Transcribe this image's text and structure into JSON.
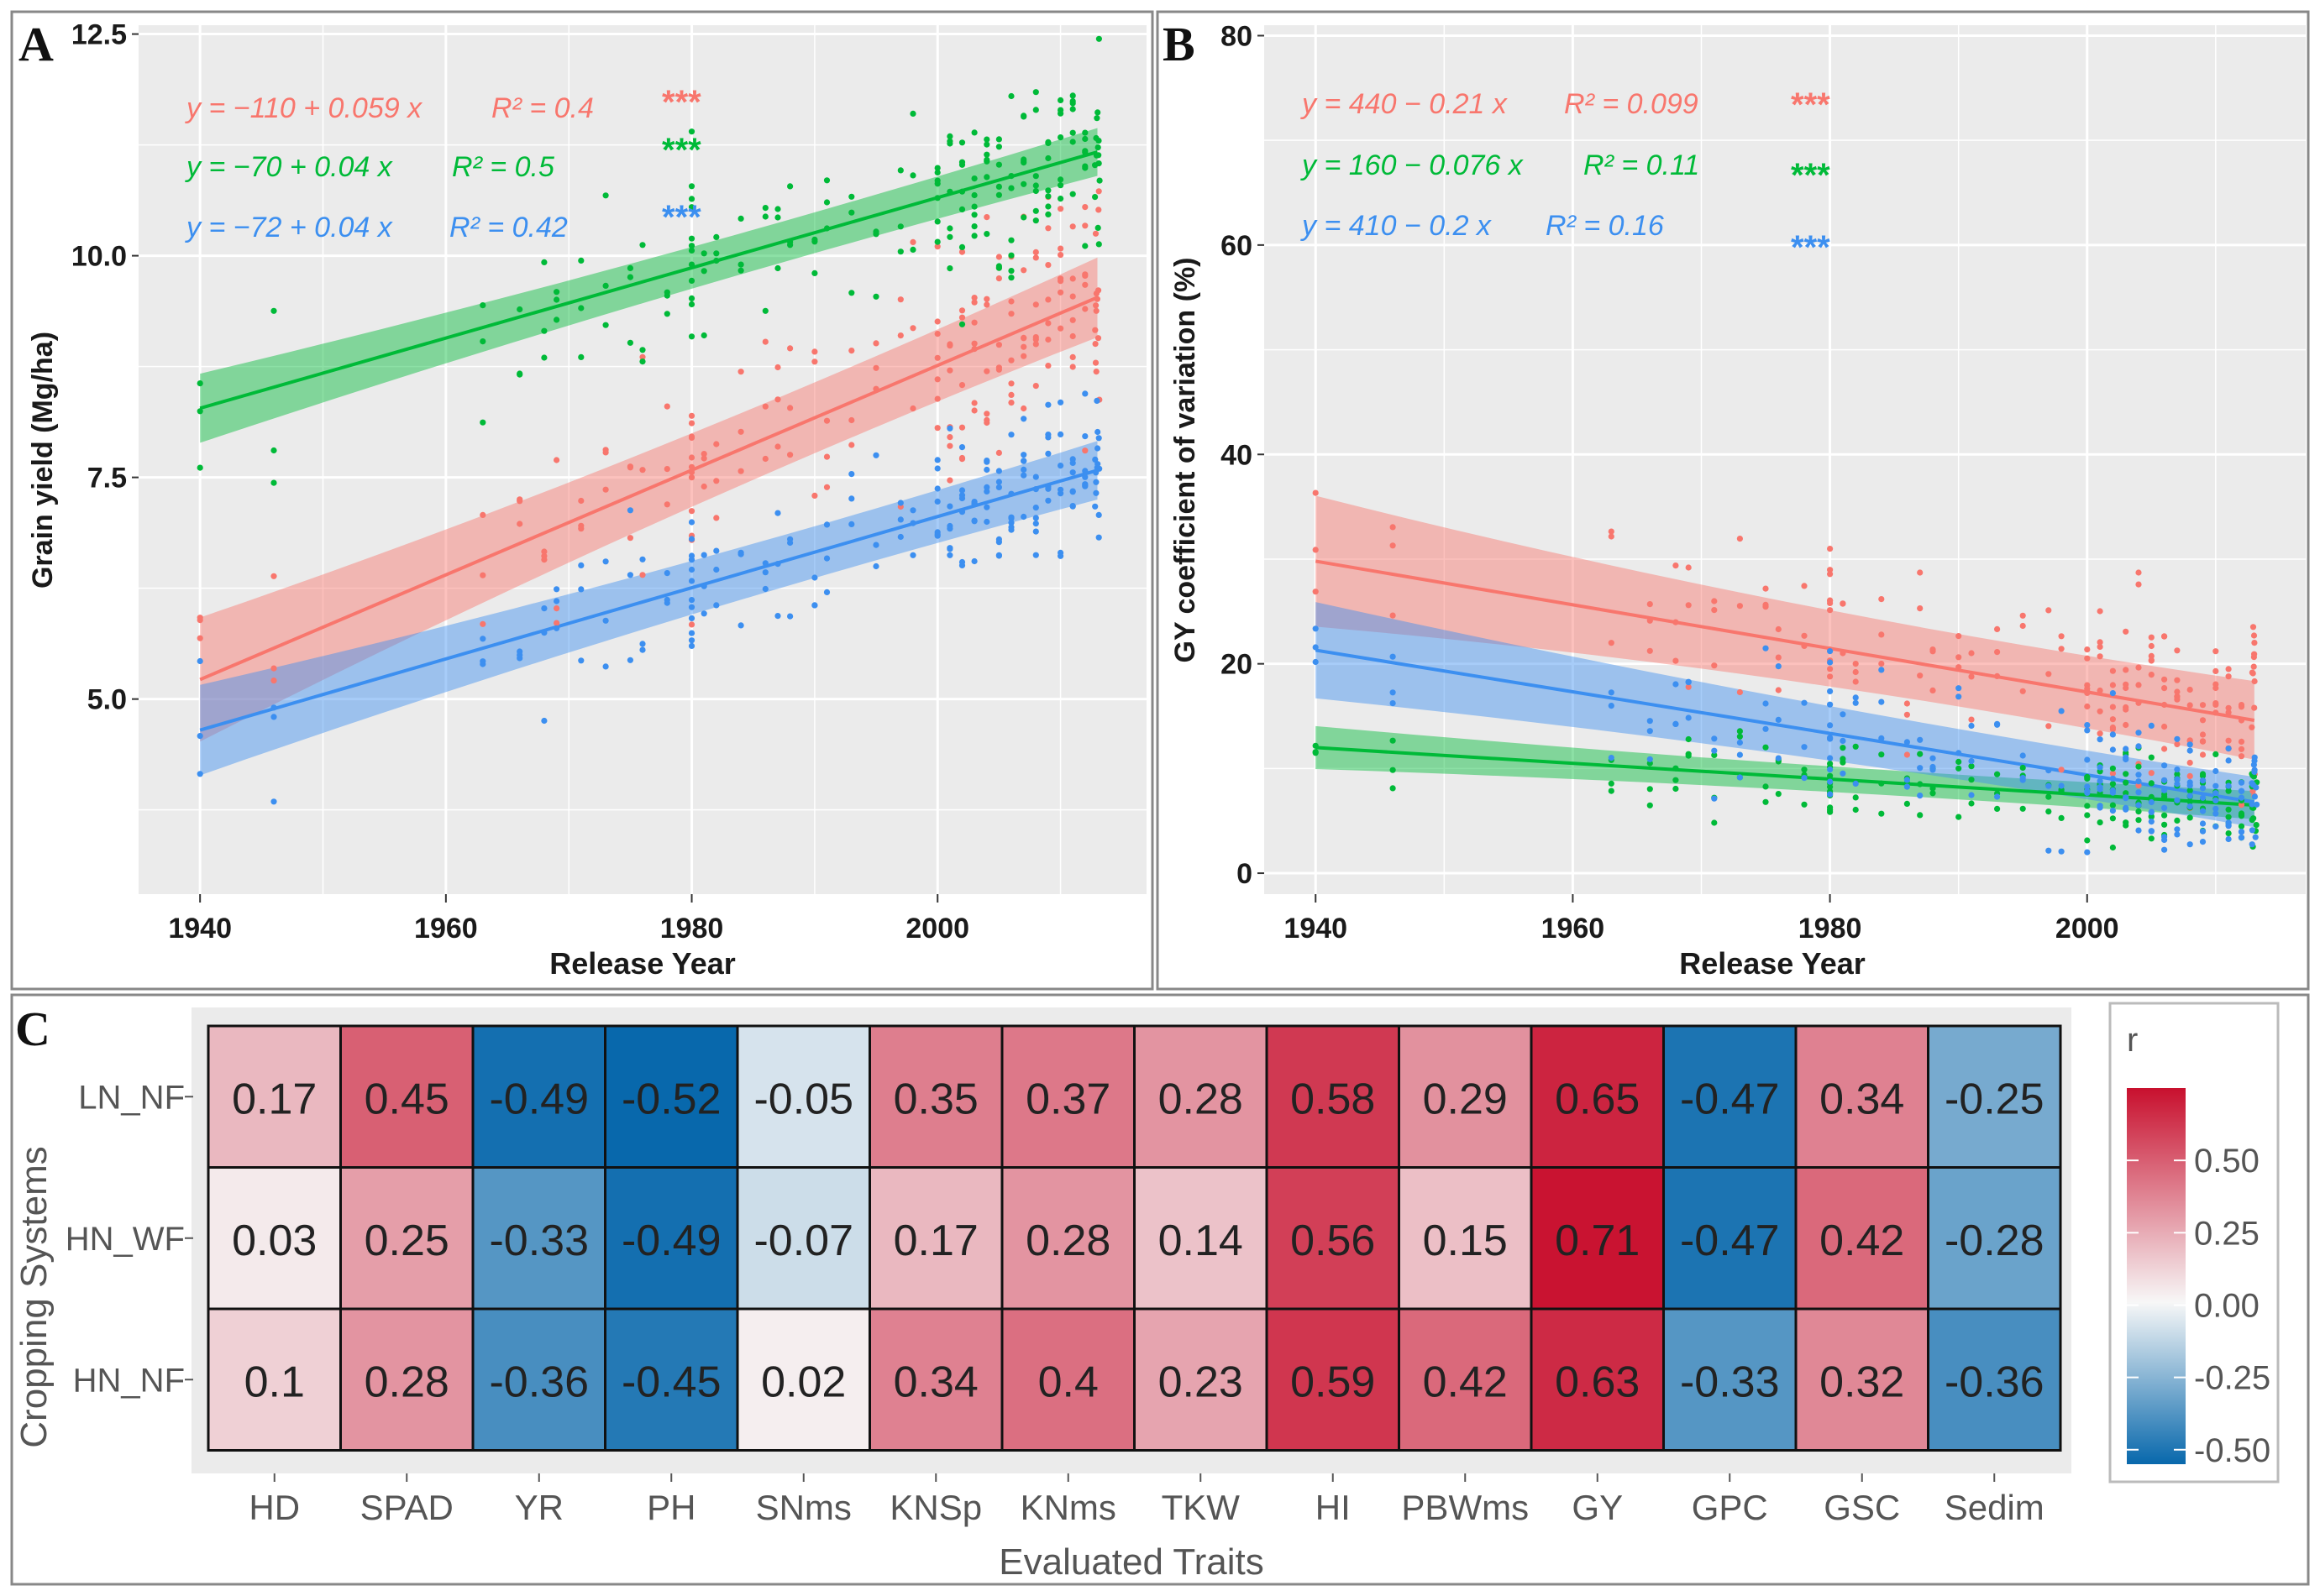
{
  "chart_data": [
    {
      "panel": "A",
      "type": "scatter",
      "xlabel": "Release Year",
      "ylabel": "Grain yield (Mg/ha)",
      "xlim": [
        1935,
        2017
      ],
      "ylim": [
        2.8,
        12.6
      ],
      "xticks": [
        1940,
        1960,
        1980,
        2000
      ],
      "yticks": [
        5.0,
        7.5,
        10.0,
        12.5
      ],
      "ytick_labels": [
        "5.0",
        "7.5",
        "10.0",
        "12.5"
      ],
      "series": [
        {
          "name": "LN_NF",
          "color": "#f8766d",
          "intercept": -110,
          "slope": 0.059,
          "equation": "y = −110 + 0.059 x",
          "r2_label": "R² = 0.4",
          "signif": "***",
          "line_start": [
            1940,
            5.22
          ],
          "line_end": [
            2013,
            9.53
          ],
          "band_start": 0.55,
          "band_end": 0.3
        },
        {
          "name": "HN_WF",
          "color": "#00ba38",
          "intercept": -70,
          "slope": 0.04,
          "equation": "y = −70 + 0.04 x",
          "r2_label": "R² = 0.5",
          "signif": "***",
          "line_start": [
            1940,
            8.28
          ],
          "line_end": [
            2013,
            11.17
          ],
          "band_start": 0.3,
          "band_end": 0.18
        },
        {
          "name": "HN_NF",
          "color": "#3c8ff0",
          "intercept": -72,
          "slope": 0.04,
          "equation": "y = −72 + 0.04 x",
          "r2_label": "R² = 0.42",
          "signif": "***",
          "line_start": [
            1940,
            4.65
          ],
          "line_end": [
            2013,
            7.58
          ],
          "band_start": 0.4,
          "band_end": 0.22
        }
      ]
    },
    {
      "panel": "B",
      "type": "scatter",
      "xlabel": "Release Year",
      "ylabel": "GY coefficient of variation (%)",
      "xlim": [
        1936,
        2017
      ],
      "ylim": [
        -2,
        81
      ],
      "xticks": [
        1940,
        1960,
        1980,
        2000
      ],
      "yticks": [
        0,
        20,
        40,
        60,
        80
      ],
      "ytick_labels": [
        "0",
        "20",
        "40",
        "60",
        "80"
      ],
      "series": [
        {
          "name": "LN_NF",
          "color": "#f8766d",
          "intercept": 440,
          "slope": -0.21,
          "equation": "y = 440 − 0.21 x",
          "r2_label": "R² = 0.099",
          "signif": "***",
          "line_start": [
            1940,
            29.8
          ],
          "line_end": [
            2013,
            14.6
          ],
          "band_start": 5,
          "band_end": 2.5
        },
        {
          "name": "HN_WF",
          "color": "#00ba38",
          "intercept": 160,
          "slope": -0.076,
          "equation": "y = 160 − 0.076 x",
          "r2_label": "R² = 0.11",
          "signif": "***",
          "line_start": [
            1940,
            12.0
          ],
          "line_end": [
            2013,
            6.5
          ],
          "band_start": 1.6,
          "band_end": 0.9
        },
        {
          "name": "HN_NF",
          "color": "#3c8ff0",
          "intercept": 410,
          "slope": -0.2,
          "equation": "y = 410 − 0.2 x",
          "r2_label": "R² = 0.16",
          "signif": "***",
          "line_start": [
            1940,
            21.3
          ],
          "line_end": [
            2013,
            6.8
          ],
          "band_start": 3.8,
          "band_end": 1.6
        }
      ]
    },
    {
      "panel": "C",
      "type": "heatmap",
      "xlabel": "Evaluated Traits",
      "ylabel": "Cropping Systems",
      "x_categories": [
        "HD",
        "SPAD",
        "YR",
        "PH",
        "SNms",
        "KNSp",
        "KNms",
        "TKW",
        "HI",
        "PBWms",
        "GY",
        "GPC",
        "GSC",
        "Sedim"
      ],
      "y_categories": [
        "LN_NF",
        "HN_WF",
        "HN_NF"
      ],
      "values": [
        [
          0.17,
          0.45,
          -0.49,
          -0.52,
          -0.05,
          0.35,
          0.37,
          0.28,
          0.58,
          0.29,
          0.65,
          -0.47,
          0.34,
          -0.25
        ],
        [
          0.03,
          0.25,
          -0.33,
          -0.49,
          -0.07,
          0.17,
          0.28,
          0.14,
          0.56,
          0.15,
          0.71,
          -0.47,
          0.42,
          -0.28
        ],
        [
          0.1,
          0.28,
          -0.36,
          -0.45,
          0.02,
          0.34,
          0.4,
          0.23,
          0.59,
          0.42,
          0.63,
          -0.33,
          0.32,
          -0.36
        ]
      ],
      "value_labels": [
        [
          "0.17",
          "0.45",
          "-0.49",
          "-0.52",
          "-0.05",
          "0.35",
          "0.37",
          "0.28",
          "0.58",
          "0.29",
          "0.65",
          "-0.47",
          "0.34",
          "-0.25"
        ],
        [
          "0.03",
          "0.25",
          "-0.33",
          "-0.49",
          "-0.07",
          "0.17",
          "0.28",
          "0.14",
          "0.56",
          "0.15",
          "0.71",
          "-0.47",
          "0.42",
          "-0.28"
        ],
        [
          "0.1",
          "0.28",
          "-0.36",
          "-0.45",
          "0.02",
          "0.34",
          "0.4",
          "0.23",
          "0.59",
          "0.42",
          "0.63",
          "-0.33",
          "0.32",
          "-0.36"
        ]
      ],
      "legend_title": "r",
      "legend_range": [
        -0.55,
        0.75
      ],
      "legend_ticks": [
        0.5,
        0.25,
        0.0,
        -0.25,
        -0.5
      ],
      "legend_tick_labels": [
        "0.50",
        "0.25",
        "0.00",
        "-0.25",
        "-0.50"
      ],
      "colors": {
        "high": "#c8102e",
        "mid": "#f7f7f7",
        "low": "#0868ac"
      }
    }
  ]
}
